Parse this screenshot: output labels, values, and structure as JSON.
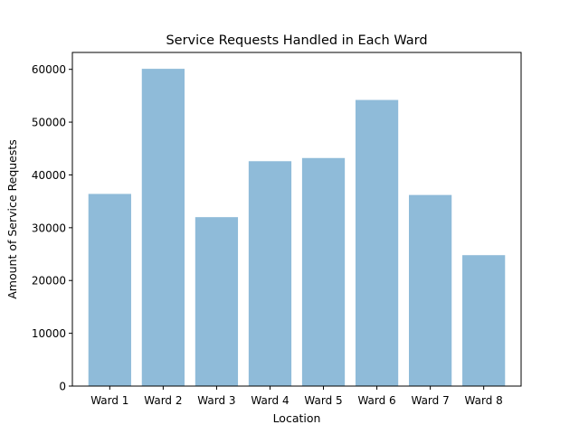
{
  "chart_data": {
    "type": "bar",
    "title": "Service Requests Handled in Each Ward",
    "xlabel": "Location",
    "ylabel": "Amount of Service Requests",
    "categories": [
      "Ward 1",
      "Ward 2",
      "Ward 3",
      "Ward 4",
      "Ward 5",
      "Ward 6",
      "Ward 7",
      "Ward 8"
    ],
    "values": [
      36400,
      60100,
      32000,
      42600,
      43200,
      54200,
      36200,
      24800
    ],
    "ylim": [
      0,
      63200
    ],
    "yticks": [
      0,
      10000,
      20000,
      30000,
      40000,
      50000,
      60000
    ],
    "bar_color": "#1f77b4",
    "bar_opacity": 0.5,
    "grid": false
  }
}
